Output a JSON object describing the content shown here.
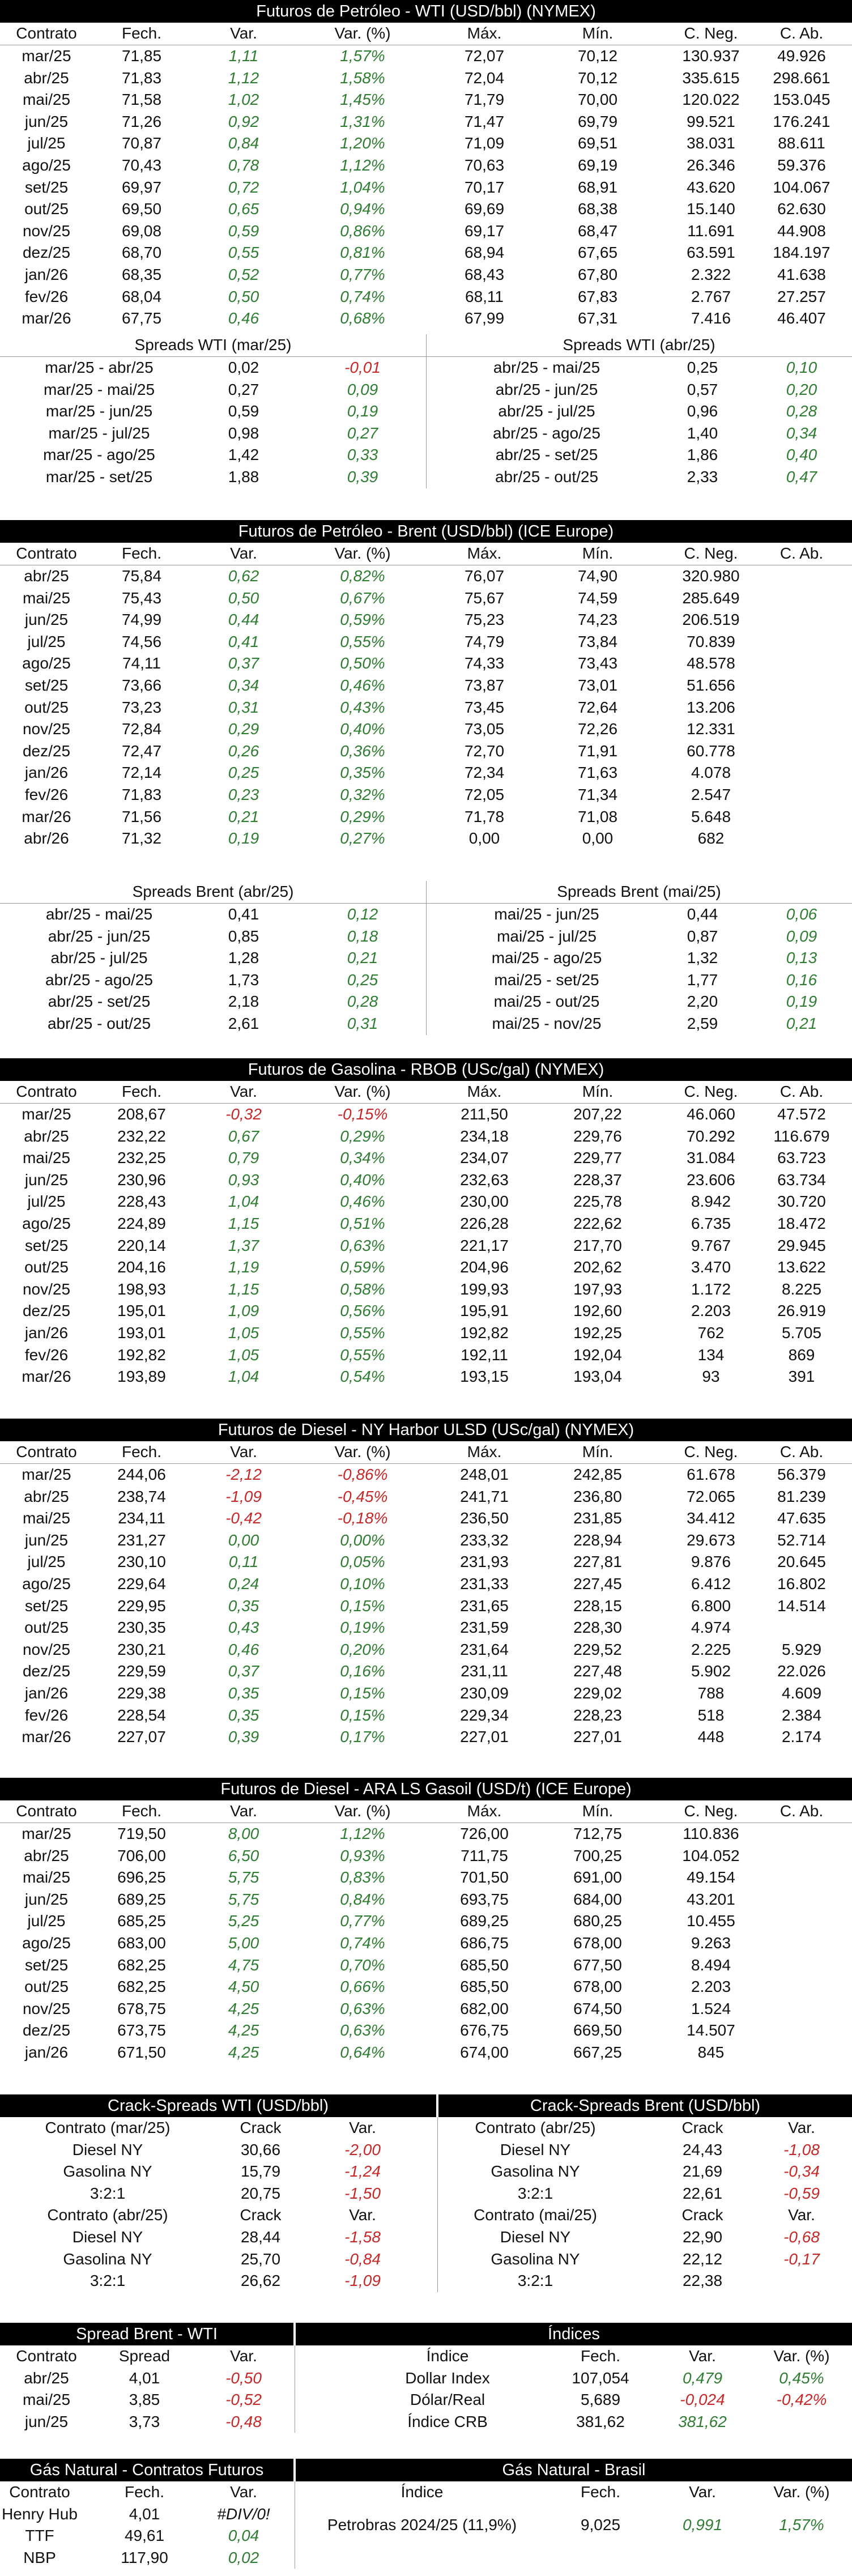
{
  "wti": {
    "title": "Futuros de Petróleo - WTI (USD/bbl) (NYMEX)",
    "headers": [
      "Contrato",
      "Fech.",
      "Var.",
      "Var. (%)",
      "Máx.",
      "Mín.",
      "C. Neg.",
      "C. Ab."
    ],
    "rows": [
      [
        "mar/25",
        "71,85",
        "1,11",
        "1,57%",
        "72,07",
        "70,12",
        "130.937",
        "49.926"
      ],
      [
        "abr/25",
        "71,83",
        "1,12",
        "1,58%",
        "72,04",
        "70,12",
        "335.615",
        "298.661"
      ],
      [
        "mai/25",
        "71,58",
        "1,02",
        "1,45%",
        "71,79",
        "70,00",
        "120.022",
        "153.045"
      ],
      [
        "jun/25",
        "71,26",
        "0,92",
        "1,31%",
        "71,47",
        "69,79",
        "99.521",
        "176.241"
      ],
      [
        "jul/25",
        "70,87",
        "0,84",
        "1,20%",
        "71,09",
        "69,51",
        "38.031",
        "88.611"
      ],
      [
        "ago/25",
        "70,43",
        "0,78",
        "1,12%",
        "70,63",
        "69,19",
        "26.346",
        "59.376"
      ],
      [
        "set/25",
        "69,97",
        "0,72",
        "1,04%",
        "70,17",
        "68,91",
        "43.620",
        "104.067"
      ],
      [
        "out/25",
        "69,50",
        "0,65",
        "0,94%",
        "69,69",
        "68,38",
        "15.140",
        "62.630"
      ],
      [
        "nov/25",
        "69,08",
        "0,59",
        "0,86%",
        "69,17",
        "68,47",
        "11.691",
        "44.908"
      ],
      [
        "dez/25",
        "68,70",
        "0,55",
        "0,81%",
        "68,94",
        "67,65",
        "63.591",
        "184.197"
      ],
      [
        "jan/26",
        "68,35",
        "0,52",
        "0,77%",
        "68,43",
        "67,80",
        "2.322",
        "41.638"
      ],
      [
        "fev/26",
        "68,04",
        "0,50",
        "0,74%",
        "68,11",
        "67,83",
        "2.767",
        "27.257"
      ],
      [
        "mar/26",
        "67,75",
        "0,46",
        "0,68%",
        "67,99",
        "67,31",
        "7.416",
        "46.407"
      ]
    ],
    "spreads_left_title": "Spreads WTI (mar/25)",
    "spreads_right_title": "Spreads WTI (abr/25)",
    "spreads_left": [
      [
        "mar/25 - abr/25",
        "0,02",
        "-0,01"
      ],
      [
        "mar/25 - mai/25",
        "0,27",
        "0,09"
      ],
      [
        "mar/25 - jun/25",
        "0,59",
        "0,19"
      ],
      [
        "mar/25 - jul/25",
        "0,98",
        "0,27"
      ],
      [
        "mar/25 - ago/25",
        "1,42",
        "0,33"
      ],
      [
        "mar/25 - set/25",
        "1,88",
        "0,39"
      ]
    ],
    "spreads_right": [
      [
        "abr/25 - mai/25",
        "0,25",
        "0,10"
      ],
      [
        "abr/25 - jun/25",
        "0,57",
        "0,20"
      ],
      [
        "abr/25 - jul/25",
        "0,96",
        "0,28"
      ],
      [
        "abr/25 - ago/25",
        "1,40",
        "0,34"
      ],
      [
        "abr/25 - set/25",
        "1,86",
        "0,40"
      ],
      [
        "abr/25 - out/25",
        "2,33",
        "0,47"
      ]
    ]
  },
  "brent": {
    "title": "Futuros de Petróleo - Brent (USD/bbl) (ICE Europe)",
    "headers": [
      "Contrato",
      "Fech.",
      "Var.",
      "Var. (%)",
      "Máx.",
      "Mín.",
      "C. Neg.",
      "C. Ab."
    ],
    "rows": [
      [
        "abr/25",
        "75,84",
        "0,62",
        "0,82%",
        "76,07",
        "74,90",
        "320.980",
        ""
      ],
      [
        "mai/25",
        "75,43",
        "0,50",
        "0,67%",
        "75,67",
        "74,59",
        "285.649",
        ""
      ],
      [
        "jun/25",
        "74,99",
        "0,44",
        "0,59%",
        "75,23",
        "74,23",
        "206.519",
        ""
      ],
      [
        "jul/25",
        "74,56",
        "0,41",
        "0,55%",
        "74,79",
        "73,84",
        "70.839",
        ""
      ],
      [
        "ago/25",
        "74,11",
        "0,37",
        "0,50%",
        "74,33",
        "73,43",
        "48.578",
        ""
      ],
      [
        "set/25",
        "73,66",
        "0,34",
        "0,46%",
        "73,87",
        "73,01",
        "51.656",
        ""
      ],
      [
        "out/25",
        "73,23",
        "0,31",
        "0,43%",
        "73,45",
        "72,64",
        "13.206",
        ""
      ],
      [
        "nov/25",
        "72,84",
        "0,29",
        "0,40%",
        "73,05",
        "72,26",
        "12.331",
        ""
      ],
      [
        "dez/25",
        "72,47",
        "0,26",
        "0,36%",
        "72,70",
        "71,91",
        "60.778",
        ""
      ],
      [
        "jan/26",
        "72,14",
        "0,25",
        "0,35%",
        "72,34",
        "71,63",
        "4.078",
        ""
      ],
      [
        "fev/26",
        "71,83",
        "0,23",
        "0,32%",
        "72,05",
        "71,34",
        "2.547",
        ""
      ],
      [
        "mar/26",
        "71,56",
        "0,21",
        "0,29%",
        "71,78",
        "71,08",
        "5.648",
        ""
      ],
      [
        "abr/26",
        "71,32",
        "0,19",
        "0,27%",
        "0,00",
        "0,00",
        "682",
        ""
      ]
    ],
    "spreads_left_title": "Spreads Brent (abr/25)",
    "spreads_right_title": "Spreads Brent (mai/25)",
    "spreads_left": [
      [
        "abr/25 - mai/25",
        "0,41",
        "0,12"
      ],
      [
        "abr/25 - jun/25",
        "0,85",
        "0,18"
      ],
      [
        "abr/25 - jul/25",
        "1,28",
        "0,21"
      ],
      [
        "abr/25 - ago/25",
        "1,73",
        "0,25"
      ],
      [
        "abr/25 - set/25",
        "2,18",
        "0,28"
      ],
      [
        "abr/25 - out/25",
        "2,61",
        "0,31"
      ]
    ],
    "spreads_right": [
      [
        "mai/25 - jun/25",
        "0,44",
        "0,06"
      ],
      [
        "mai/25 - jul/25",
        "0,87",
        "0,09"
      ],
      [
        "mai/25 - ago/25",
        "1,32",
        "0,13"
      ],
      [
        "mai/25 - set/25",
        "1,77",
        "0,16"
      ],
      [
        "mai/25 - out/25",
        "2,20",
        "0,19"
      ],
      [
        "mai/25 - nov/25",
        "2,59",
        "0,21"
      ]
    ]
  },
  "rbob": {
    "title": "Futuros de Gasolina - RBOB (USc/gal) (NYMEX)",
    "headers": [
      "Contrato",
      "Fech.",
      "Var.",
      "Var. (%)",
      "Máx.",
      "Mín.",
      "C. Neg.",
      "C. Ab."
    ],
    "rows": [
      [
        "mar/25",
        "208,67",
        "-0,32",
        "-0,15%",
        "211,50",
        "207,22",
        "46.060",
        "47.572"
      ],
      [
        "abr/25",
        "232,22",
        "0,67",
        "0,29%",
        "234,18",
        "229,76",
        "70.292",
        "116.679"
      ],
      [
        "mai/25",
        "232,25",
        "0,79",
        "0,34%",
        "234,07",
        "229,77",
        "31.084",
        "63.723"
      ],
      [
        "jun/25",
        "230,96",
        "0,93",
        "0,40%",
        "232,63",
        "228,37",
        "23.606",
        "63.734"
      ],
      [
        "jul/25",
        "228,43",
        "1,04",
        "0,46%",
        "230,00",
        "225,78",
        "8.942",
        "30.720"
      ],
      [
        "ago/25",
        "224,89",
        "1,15",
        "0,51%",
        "226,28",
        "222,62",
        "6.735",
        "18.472"
      ],
      [
        "set/25",
        "220,14",
        "1,37",
        "0,63%",
        "221,17",
        "217,70",
        "9.767",
        "29.945"
      ],
      [
        "out/25",
        "204,16",
        "1,19",
        "0,59%",
        "204,96",
        "202,62",
        "3.470",
        "13.622"
      ],
      [
        "nov/25",
        "198,93",
        "1,15",
        "0,58%",
        "199,93",
        "197,93",
        "1.172",
        "8.225"
      ],
      [
        "dez/25",
        "195,01",
        "1,09",
        "0,56%",
        "195,91",
        "192,60",
        "2.203",
        "26.919"
      ],
      [
        "jan/26",
        "193,01",
        "1,05",
        "0,55%",
        "192,82",
        "192,25",
        "762",
        "5.705"
      ],
      [
        "fev/26",
        "192,82",
        "1,05",
        "0,55%",
        "192,11",
        "192,04",
        "134",
        "869"
      ],
      [
        "mar/26",
        "193,89",
        "1,04",
        "0,54%",
        "193,15",
        "193,04",
        "93",
        "391"
      ]
    ]
  },
  "ulsd": {
    "title": "Futuros de Diesel - NY Harbor ULSD (USc/gal) (NYMEX)",
    "headers": [
      "Contrato",
      "Fech.",
      "Var.",
      "Var. (%)",
      "Máx.",
      "Mín.",
      "C. Neg.",
      "C. Ab."
    ],
    "rows": [
      [
        "mar/25",
        "244,06",
        "-2,12",
        "-0,86%",
        "248,01",
        "242,85",
        "61.678",
        "56.379"
      ],
      [
        "abr/25",
        "238,74",
        "-1,09",
        "-0,45%",
        "241,71",
        "236,80",
        "72.065",
        "81.239"
      ],
      [
        "mai/25",
        "234,11",
        "-0,42",
        "-0,18%",
        "236,50",
        "231,85",
        "34.412",
        "47.635"
      ],
      [
        "jun/25",
        "231,27",
        "0,00",
        "0,00%",
        "233,32",
        "228,94",
        "29.673",
        "52.714"
      ],
      [
        "jul/25",
        "230,10",
        "0,11",
        "0,05%",
        "231,93",
        "227,81",
        "9.876",
        "20.645"
      ],
      [
        "ago/25",
        "229,64",
        "0,24",
        "0,10%",
        "231,33",
        "227,45",
        "6.412",
        "16.802"
      ],
      [
        "set/25",
        "229,95",
        "0,35",
        "0,15%",
        "231,65",
        "228,15",
        "6.800",
        "14.514"
      ],
      [
        "out/25",
        "230,35",
        "0,43",
        "0,19%",
        "231,59",
        "228,30",
        "4.974",
        ""
      ],
      [
        "nov/25",
        "230,21",
        "0,46",
        "0,20%",
        "231,64",
        "229,52",
        "2.225",
        "5.929"
      ],
      [
        "dez/25",
        "229,59",
        "0,37",
        "0,16%",
        "231,11",
        "227,48",
        "5.902",
        "22.026"
      ],
      [
        "jan/26",
        "229,38",
        "0,35",
        "0,15%",
        "230,09",
        "229,02",
        "788",
        "4.609"
      ],
      [
        "fev/26",
        "228,54",
        "0,35",
        "0,15%",
        "229,34",
        "228,23",
        "518",
        "2.384"
      ],
      [
        "mar/26",
        "227,07",
        "0,39",
        "0,17%",
        "227,01",
        "227,01",
        "448",
        "2.174"
      ]
    ]
  },
  "gasoil": {
    "title": "Futuros de Diesel - ARA LS Gasoil (USD/t) (ICE Europe)",
    "headers": [
      "Contrato",
      "Fech.",
      "Var.",
      "Var. (%)",
      "Máx.",
      "Mín.",
      "C. Neg.",
      "C. Ab."
    ],
    "rows": [
      [
        "mar/25",
        "719,50",
        "8,00",
        "1,12%",
        "726,00",
        "712,75",
        "110.836",
        ""
      ],
      [
        "abr/25",
        "706,00",
        "6,50",
        "0,93%",
        "711,75",
        "700,25",
        "104.052",
        ""
      ],
      [
        "mai/25",
        "696,25",
        "5,75",
        "0,83%",
        "701,50",
        "691,00",
        "49.154",
        ""
      ],
      [
        "jun/25",
        "689,25",
        "5,75",
        "0,84%",
        "693,75",
        "684,00",
        "43.201",
        ""
      ],
      [
        "jul/25",
        "685,25",
        "5,25",
        "0,77%",
        "689,25",
        "680,25",
        "10.455",
        ""
      ],
      [
        "ago/25",
        "683,00",
        "5,00",
        "0,74%",
        "686,75",
        "678,00",
        "9.263",
        ""
      ],
      [
        "set/25",
        "682,25",
        "4,75",
        "0,70%",
        "685,50",
        "677,50",
        "8.494",
        ""
      ],
      [
        "out/25",
        "682,25",
        "4,50",
        "0,66%",
        "685,50",
        "678,00",
        "2.203",
        ""
      ],
      [
        "nov/25",
        "678,75",
        "4,25",
        "0,63%",
        "682,00",
        "674,50",
        "1.524",
        ""
      ],
      [
        "dez/25",
        "673,75",
        "4,25",
        "0,63%",
        "676,75",
        "669,50",
        "14.507",
        ""
      ],
      [
        "jan/26",
        "671,50",
        "4,25",
        "0,64%",
        "674,00",
        "667,25",
        "845",
        ""
      ]
    ]
  },
  "crack": {
    "wti_title": "Crack-Spreads WTI (USD/bbl)",
    "brent_title": "Crack-Spreads Brent (USD/bbl)",
    "col_crack": "Crack",
    "col_var": "Var.",
    "wti_blocks": [
      {
        "label": "Contrato (mar/25)",
        "rows": [
          [
            "Diesel NY",
            "30,66",
            "-2,00"
          ],
          [
            "Gasolina NY",
            "15,79",
            "-1,24"
          ],
          [
            "3:2:1",
            "20,75",
            "-1,50"
          ]
        ]
      },
      {
        "label": "Contrato (abr/25)",
        "rows": [
          [
            "Diesel NY",
            "28,44",
            "-1,58"
          ],
          [
            "Gasolina NY",
            "25,70",
            "-0,84"
          ],
          [
            "3:2:1",
            "26,62",
            "-1,09"
          ]
        ]
      }
    ],
    "brent_blocks": [
      {
        "label": "Contrato (abr/25)",
        "rows": [
          [
            "Diesel NY",
            "24,43",
            "-1,08"
          ],
          [
            "Gasolina NY",
            "21,69",
            "-0,34"
          ],
          [
            "3:2:1",
            "22,61",
            "-0,59"
          ]
        ]
      },
      {
        "label": "Contrato (mai/25)",
        "rows": [
          [
            "Diesel NY",
            "22,90",
            "-0,68"
          ],
          [
            "Gasolina NY",
            "22,12",
            "-0,17"
          ],
          [
            "3:2:1",
            "22,38",
            ""
          ]
        ]
      }
    ]
  },
  "spread_bw": {
    "title": "Spread Brent - WTI",
    "headers": [
      "Contrato",
      "Spread",
      "Var."
    ],
    "rows": [
      [
        "abr/25",
        "4,01",
        "-0,50"
      ],
      [
        "mai/25",
        "3,85",
        "-0,52"
      ],
      [
        "jun/25",
        "3,73",
        "-0,48"
      ]
    ]
  },
  "indices": {
    "title": "Índices",
    "headers": [
      "Índice",
      "Fech.",
      "Var.",
      "Var. (%)"
    ],
    "rows": [
      [
        "Dollar Index",
        "107,054",
        "0,479",
        "0,45%"
      ],
      [
        "Dólar/Real",
        "5,689",
        "-0,024",
        "-0,42%"
      ],
      [
        "Índice CRB",
        "381,62",
        "381,62",
        ""
      ]
    ]
  },
  "gas_futures": {
    "title": "Gás Natural - Contratos Futuros",
    "headers": [
      "Contrato",
      "Fech.",
      "Var."
    ],
    "rows": [
      [
        "Henry Hub",
        "4,01",
        "#DIV/0!"
      ],
      [
        "TTF",
        "49,61",
        "0,04"
      ],
      [
        "NBP",
        "117,90",
        "0,02"
      ]
    ]
  },
  "gas_brasil": {
    "title": "Gás Natural - Brasil",
    "headers": [
      "Índice",
      "Fech.",
      "Var.",
      "Var. (%)"
    ],
    "rows": [
      [
        "Petrobras 2024/25 (11,9%)",
        "9,025",
        "0,991",
        "1,57%"
      ]
    ]
  },
  "colors": {
    "positive": "#2e7d32",
    "negative": "#c62828",
    "header_bg": "#000000"
  }
}
